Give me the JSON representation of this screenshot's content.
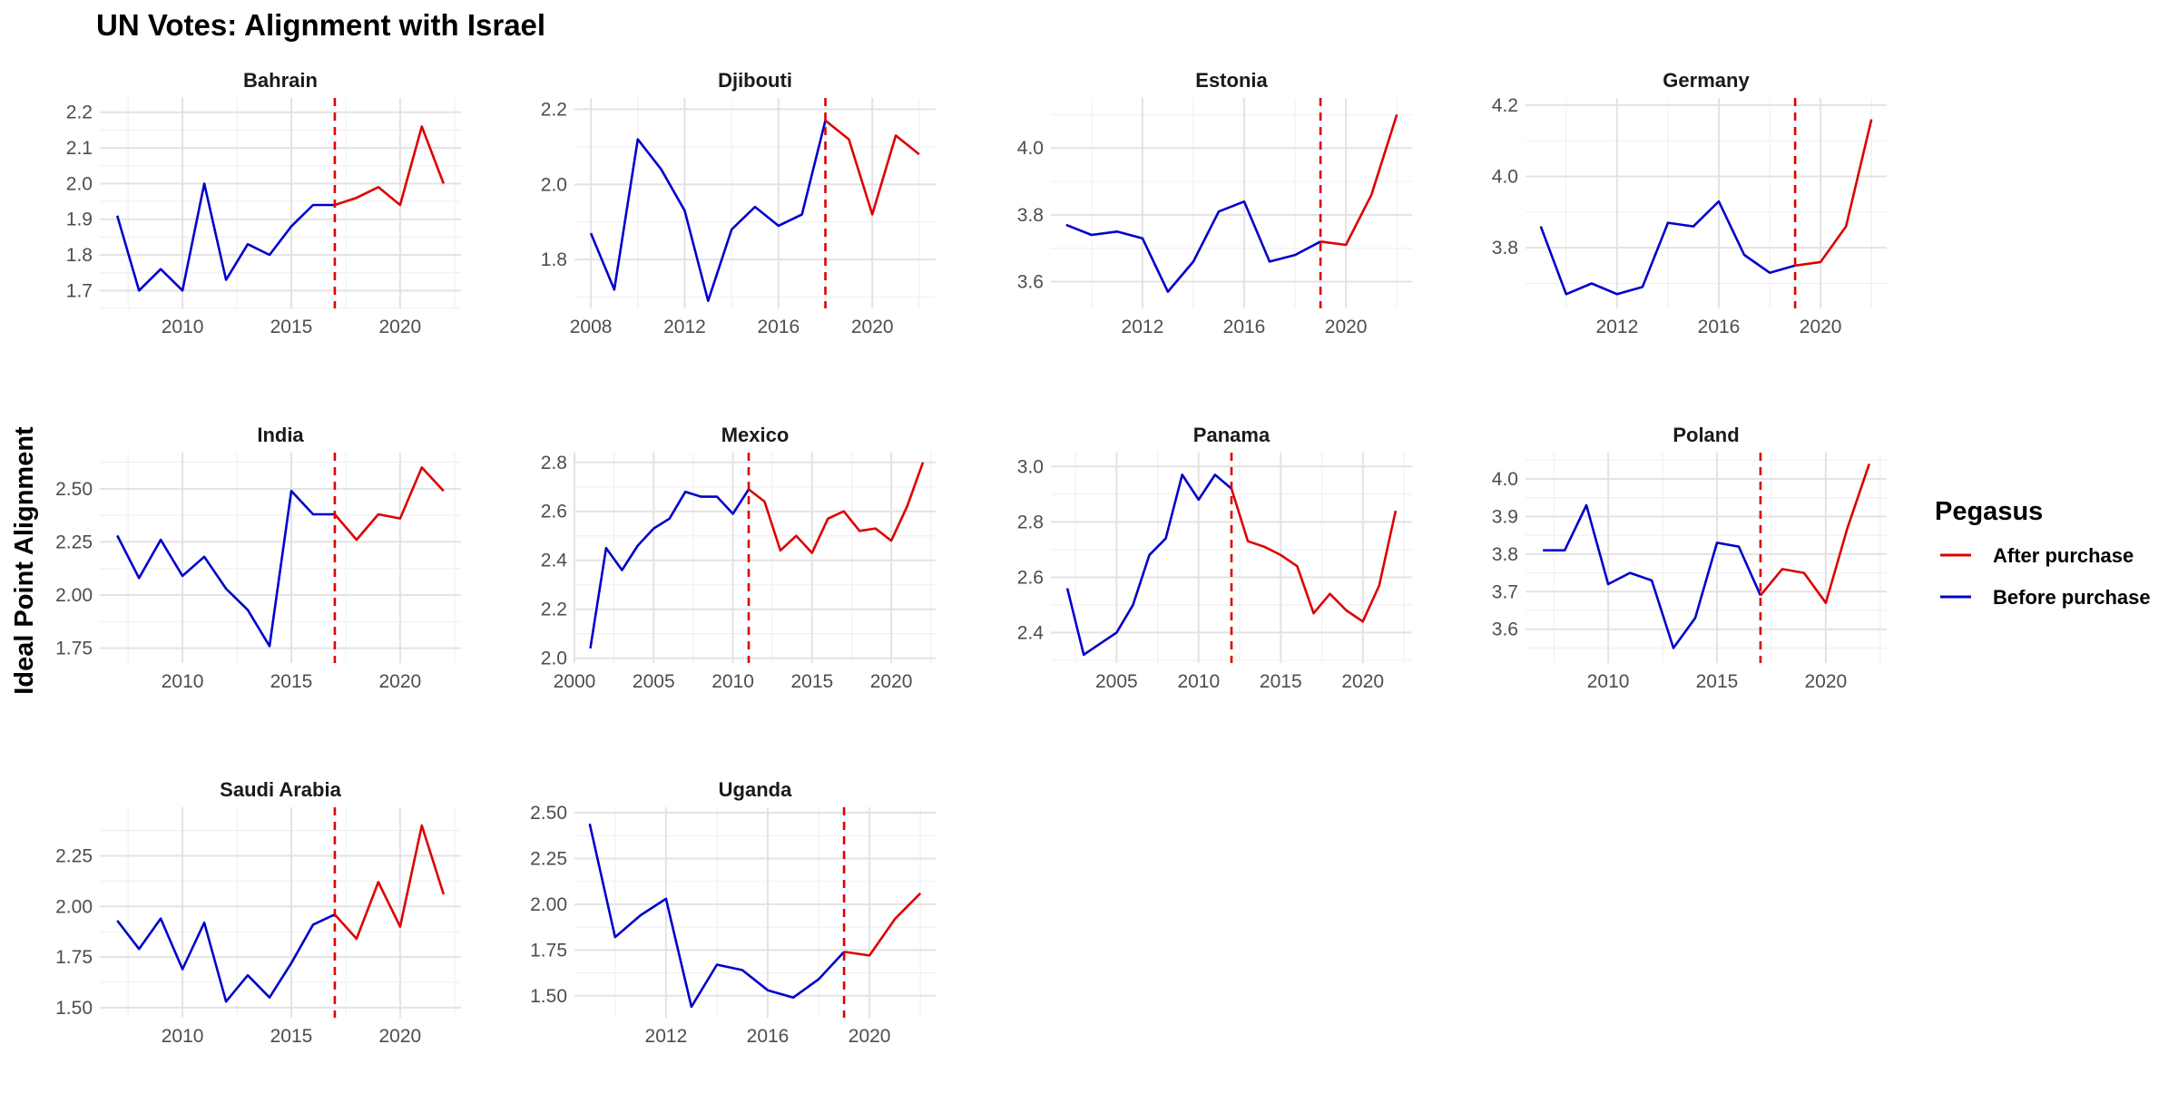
{
  "chart_data": {
    "type": "line",
    "title": "UN Votes: Alignment with Israel",
    "ylabel": "Ideal Point Alignment",
    "xlabel": "",
    "grid": true,
    "legend": {
      "title": "Pegasus",
      "placement": "right",
      "entries": [
        {
          "label": "After purchase",
          "color": "#dd0000"
        },
        {
          "label": "Before purchase",
          "color": "#0000cc"
        }
      ]
    },
    "colors": {
      "after": "#dd0000",
      "before": "#0000cc",
      "purchase_line": "#dd0000"
    },
    "panels": [
      {
        "title": "Bahrain",
        "purchase_year": 2017,
        "xlim": [
          2006.2,
          2022.8
        ],
        "xticks": [
          2010,
          2015,
          2020
        ],
        "ylim": [
          1.65,
          2.24
        ],
        "yticks": [
          1.7,
          1.8,
          1.9,
          2.0,
          2.1,
          2.2
        ],
        "ytick_labels": [
          "1.7",
          "1.8",
          "1.9",
          "2.0",
          "2.1",
          "2.2"
        ],
        "x": [
          2007,
          2008,
          2009,
          2010,
          2011,
          2012,
          2013,
          2014,
          2015,
          2016,
          2017,
          2018,
          2019,
          2020,
          2021,
          2022
        ],
        "y": [
          1.91,
          1.7,
          1.76,
          1.7,
          2.0,
          1.73,
          1.83,
          1.8,
          1.88,
          1.94,
          1.94,
          1.96,
          1.99,
          1.94,
          2.16,
          2.0
        ]
      },
      {
        "title": "Djibouti",
        "purchase_year": 2018,
        "xlim": [
          2007.3,
          2022.7
        ],
        "xticks": [
          2008,
          2012,
          2016,
          2020
        ],
        "ylim": [
          1.67,
          2.23
        ],
        "yticks": [
          1.8,
          2.0,
          2.2
        ],
        "ytick_labels": [
          "1.8",
          "2.0",
          "2.2"
        ],
        "x": [
          2008,
          2009,
          2010,
          2011,
          2012,
          2013,
          2014,
          2015,
          2016,
          2017,
          2018,
          2019,
          2020,
          2021,
          2022
        ],
        "y": [
          1.87,
          1.72,
          2.12,
          2.04,
          1.93,
          1.69,
          1.88,
          1.94,
          1.89,
          1.92,
          2.17,
          2.12,
          1.92,
          2.13,
          2.08
        ]
      },
      {
        "title": "Estonia",
        "purchase_year": 2019,
        "xlim": [
          2008.4,
          2022.6
        ],
        "xticks": [
          2012,
          2016,
          2020
        ],
        "ylim": [
          3.52,
          4.15
        ],
        "yticks": [
          3.6,
          3.8,
          4.0
        ],
        "ytick_labels": [
          "3.6",
          "3.8",
          "4.0"
        ],
        "x": [
          2009,
          2010,
          2011,
          2012,
          2013,
          2014,
          2015,
          2016,
          2017,
          2018,
          2019,
          2020,
          2021,
          2022
        ],
        "y": [
          3.77,
          3.74,
          3.75,
          3.73,
          3.57,
          3.66,
          3.81,
          3.84,
          3.66,
          3.68,
          3.72,
          3.71,
          3.86,
          4.1
        ]
      },
      {
        "title": "Germany",
        "purchase_year": 2019,
        "xlim": [
          2008.4,
          2022.6
        ],
        "xticks": [
          2012,
          2016,
          2020
        ],
        "ylim": [
          3.63,
          4.22
        ],
        "yticks": [
          3.8,
          4.0,
          4.2
        ],
        "ytick_labels": [
          "3.8",
          "4.0",
          "4.2"
        ],
        "x": [
          2009,
          2010,
          2011,
          2012,
          2013,
          2014,
          2015,
          2016,
          2017,
          2018,
          2019,
          2020,
          2021,
          2022
        ],
        "y": [
          3.86,
          3.67,
          3.7,
          3.67,
          3.69,
          3.87,
          3.86,
          3.93,
          3.78,
          3.73,
          3.75,
          3.76,
          3.86,
          4.16
        ]
      },
      {
        "title": "India",
        "purchase_year": 2017,
        "xlim": [
          2006.2,
          2022.8
        ],
        "xticks": [
          2010,
          2015,
          2020
        ],
        "ylim": [
          1.68,
          2.67
        ],
        "yticks": [
          1.75,
          2.0,
          2.25,
          2.5
        ],
        "ytick_labels": [
          "1.75",
          "2.00",
          "2.25",
          "2.50"
        ],
        "x": [
          2007,
          2008,
          2009,
          2010,
          2011,
          2012,
          2013,
          2014,
          2015,
          2016,
          2017,
          2018,
          2019,
          2020,
          2021,
          2022
        ],
        "y": [
          2.28,
          2.08,
          2.26,
          2.09,
          2.18,
          2.03,
          1.93,
          1.76,
          2.49,
          2.38,
          2.38,
          2.26,
          2.38,
          2.36,
          2.6,
          2.49
        ]
      },
      {
        "title": "Mexico",
        "purchase_year": 2011,
        "xlim": [
          2000.0,
          2022.8
        ],
        "xticks": [
          2000,
          2005,
          2010,
          2015,
          2020
        ],
        "ylim": [
          1.98,
          2.84
        ],
        "yticks": [
          2.0,
          2.2,
          2.4,
          2.6,
          2.8
        ],
        "ytick_labels": [
          "2.0",
          "2.2",
          "2.4",
          "2.6",
          "2.8"
        ],
        "x": [
          2001,
          2002,
          2003,
          2004,
          2005,
          2006,
          2007,
          2008,
          2009,
          2010,
          2011,
          2012,
          2013,
          2014,
          2015,
          2016,
          2017,
          2018,
          2019,
          2020,
          2021,
          2022
        ],
        "y": [
          2.04,
          2.45,
          2.36,
          2.46,
          2.53,
          2.57,
          2.68,
          2.66,
          2.66,
          2.59,
          2.69,
          2.64,
          2.44,
          2.5,
          2.43,
          2.57,
          2.6,
          2.52,
          2.53,
          2.48,
          2.62,
          2.8
        ]
      },
      {
        "title": "Panama",
        "purchase_year": 2012,
        "xlim": [
          2001.0,
          2023.0
        ],
        "xticks": [
          2005,
          2010,
          2015,
          2020
        ],
        "ylim": [
          2.29,
          3.05
        ],
        "yticks": [
          2.4,
          2.6,
          2.8,
          3.0
        ],
        "ytick_labels": [
          "2.4",
          "2.6",
          "2.8",
          "3.0"
        ],
        "x": [
          2002,
          2003,
          2004,
          2005,
          2006,
          2007,
          2008,
          2009,
          2010,
          2011,
          2012,
          2013,
          2014,
          2015,
          2016,
          2017,
          2018,
          2019,
          2020,
          2021,
          2022
        ],
        "y": [
          2.56,
          2.32,
          2.36,
          2.4,
          2.5,
          2.68,
          2.74,
          2.97,
          2.88,
          2.97,
          2.92,
          2.73,
          2.71,
          2.68,
          2.64,
          2.47,
          2.54,
          2.48,
          2.44,
          2.57,
          2.84
        ]
      },
      {
        "title": "Poland",
        "purchase_year": 2017,
        "xlim": [
          2006.2,
          2022.8
        ],
        "xticks": [
          2010,
          2015,
          2020
        ],
        "ylim": [
          3.51,
          4.07
        ],
        "yticks": [
          3.6,
          3.7,
          3.8,
          3.9,
          4.0
        ],
        "ytick_labels": [
          "3.6",
          "3.7",
          "3.8",
          "3.9",
          "4.0"
        ],
        "x": [
          2007,
          2008,
          2009,
          2010,
          2011,
          2012,
          2013,
          2014,
          2015,
          2016,
          2017,
          2018,
          2019,
          2020,
          2021,
          2022
        ],
        "y": [
          3.81,
          3.81,
          3.93,
          3.72,
          3.75,
          3.73,
          3.55,
          3.63,
          3.83,
          3.82,
          3.69,
          3.76,
          3.75,
          3.67,
          3.87,
          4.04
        ]
      },
      {
        "title": "Saudi Arabia",
        "purchase_year": 2017,
        "xlim": [
          2006.2,
          2022.8
        ],
        "xticks": [
          2010,
          2015,
          2020
        ],
        "ylim": [
          1.45,
          2.49
        ],
        "yticks": [
          1.5,
          1.75,
          2.0,
          2.25
        ],
        "ytick_labels": [
          "1.50",
          "1.75",
          "2.00",
          "2.25"
        ],
        "x": [
          2007,
          2008,
          2009,
          2010,
          2011,
          2012,
          2013,
          2014,
          2015,
          2016,
          2017,
          2018,
          2019,
          2020,
          2021,
          2022
        ],
        "y": [
          1.93,
          1.79,
          1.94,
          1.69,
          1.92,
          1.53,
          1.66,
          1.55,
          1.72,
          1.91,
          1.96,
          1.84,
          2.12,
          1.9,
          2.4,
          2.06
        ]
      },
      {
        "title": "Uganda",
        "purchase_year": 2019,
        "xlim": [
          2008.4,
          2022.6
        ],
        "xticks": [
          2012,
          2016,
          2020
        ],
        "ylim": [
          1.38,
          2.53
        ],
        "yticks": [
          1.5,
          1.75,
          2.0,
          2.25,
          2.5
        ],
        "ytick_labels": [
          "1.50",
          "1.75",
          "2.00",
          "2.25",
          "2.50"
        ],
        "x": [
          2009,
          2010,
          2011,
          2012,
          2013,
          2014,
          2015,
          2016,
          2017,
          2018,
          2019,
          2020,
          2021,
          2022
        ],
        "y": [
          2.44,
          1.82,
          1.94,
          2.03,
          1.44,
          1.67,
          1.64,
          1.53,
          1.49,
          1.59,
          1.74,
          1.72,
          1.92,
          2.06
        ]
      }
    ]
  }
}
